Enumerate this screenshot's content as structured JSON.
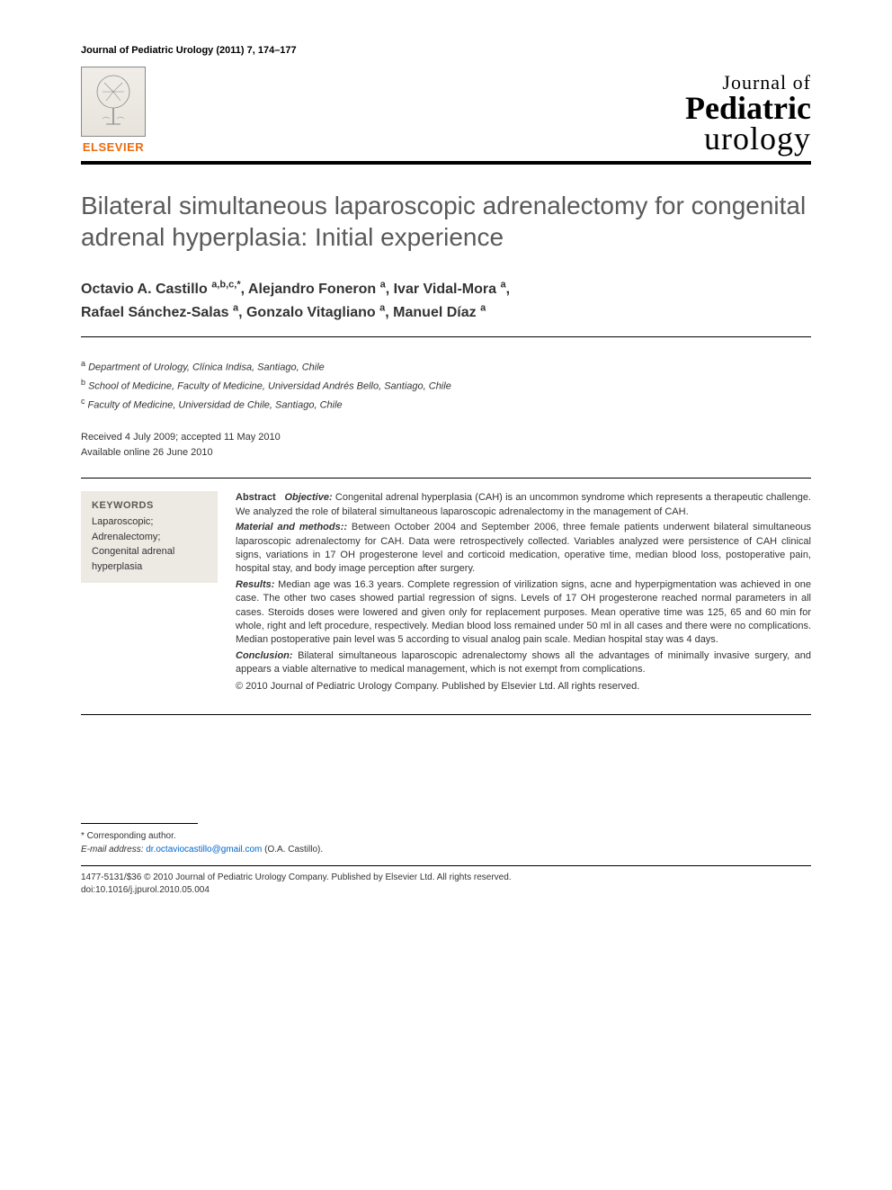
{
  "header": {
    "journal_reference": "Journal of Pediatric Urology (2011) 7, 174–177",
    "publisher_name": "ELSEVIER",
    "journal_logo": {
      "line1": "Journal of",
      "line2": "Pediatric",
      "line3": "urology"
    }
  },
  "article": {
    "title": "Bilateral simultaneous laparoscopic adrenalectomy for congenital adrenal hyperplasia: Initial experience",
    "authors": [
      {
        "name": "Octavio A. Castillo",
        "affil": "a,b,c,",
        "corresponding": true
      },
      {
        "name": "Alejandro Foneron",
        "affil": "a"
      },
      {
        "name": "Ivar Vidal-Mora",
        "affil": "a"
      },
      {
        "name": "Rafael Sánchez-Salas",
        "affil": "a"
      },
      {
        "name": "Gonzalo Vitagliano",
        "affil": "a"
      },
      {
        "name": "Manuel Díaz",
        "affil": "a"
      }
    ],
    "affiliations": [
      {
        "key": "a",
        "text": "Department of Urology, Clínica Indisa, Santiago, Chile"
      },
      {
        "key": "b",
        "text": "School of Medicine, Faculty of Medicine, Universidad Andrés Bello, Santiago, Chile"
      },
      {
        "key": "c",
        "text": "Faculty of Medicine, Universidad de Chile, Santiago, Chile"
      }
    ],
    "dates": {
      "received_accepted": "Received 4 July 2009; accepted 11 May 2010",
      "online": "Available online 26 June 2010"
    }
  },
  "keywords": {
    "heading": "KEYWORDS",
    "items": "Laparoscopic; Adrenalectomy; Congenital adrenal hyperplasia"
  },
  "abstract": {
    "label": "Abstract",
    "objective_label": "Objective:",
    "objective": " Congenital adrenal hyperplasia (CAH) is an uncommon syndrome which represents a therapeutic challenge. We analyzed the role of bilateral simultaneous laparoscopic adrenalectomy in the management of CAH.",
    "methods_label": "Material and methods::",
    "methods": " Between October 2004 and September 2006, three female patients underwent bilateral simultaneous laparoscopic adrenalectomy for CAH. Data were retrospectively collected. Variables analyzed were persistence of CAH clinical signs, variations in 17 OH progesterone level and corticoid medication, operative time, median blood loss, postoperative pain, hospital stay, and body image perception after surgery.",
    "results_label": "Results:",
    "results": " Median age was 16.3 years. Complete regression of virilization signs, acne and hyperpigmentation was achieved in one case. The other two cases showed partial regression of signs. Levels of 17 OH progesterone reached normal parameters in all cases. Steroids doses were lowered and given only for replacement purposes. Mean operative time was 125, 65 and 60 min for whole, right and left procedure, respectively. Median blood loss remained under 50 ml in all cases and there were no complications. Median postoperative pain level was 5 according to visual analog pain scale. Median hospital stay was 4 days.",
    "conclusion_label": "Conclusion:",
    "conclusion": " Bilateral simultaneous laparoscopic adrenalectomy shows all the advantages of minimally invasive surgery, and appears a viable alternative to medical management, which is not exempt from complications.",
    "copyright": "© 2010 Journal of Pediatric Urology Company. Published by Elsevier Ltd. All rights reserved."
  },
  "footnote": {
    "corresponding_label": "* Corresponding author.",
    "email_label": "E-mail address:",
    "email": "dr.octaviocastillo@gmail.com",
    "email_attribution": " (O.A. Castillo)."
  },
  "footer": {
    "line1": "1477-5131/$36 © 2010 Journal of Pediatric Urology Company. Published by Elsevier Ltd. All rights reserved.",
    "line2": "doi:10.1016/j.jpurol.2010.05.004"
  },
  "colors": {
    "elsevier_orange": "#eb6b0c",
    "title_gray": "#5a5a5a",
    "keywords_bg": "#eceae3",
    "link_blue": "#0066cc"
  },
  "typography": {
    "body_font": "Arial, Helvetica, sans-serif",
    "title_fontsize": 28,
    "author_fontsize": 16,
    "body_fontsize": 11,
    "footnote_fontsize": 10
  }
}
